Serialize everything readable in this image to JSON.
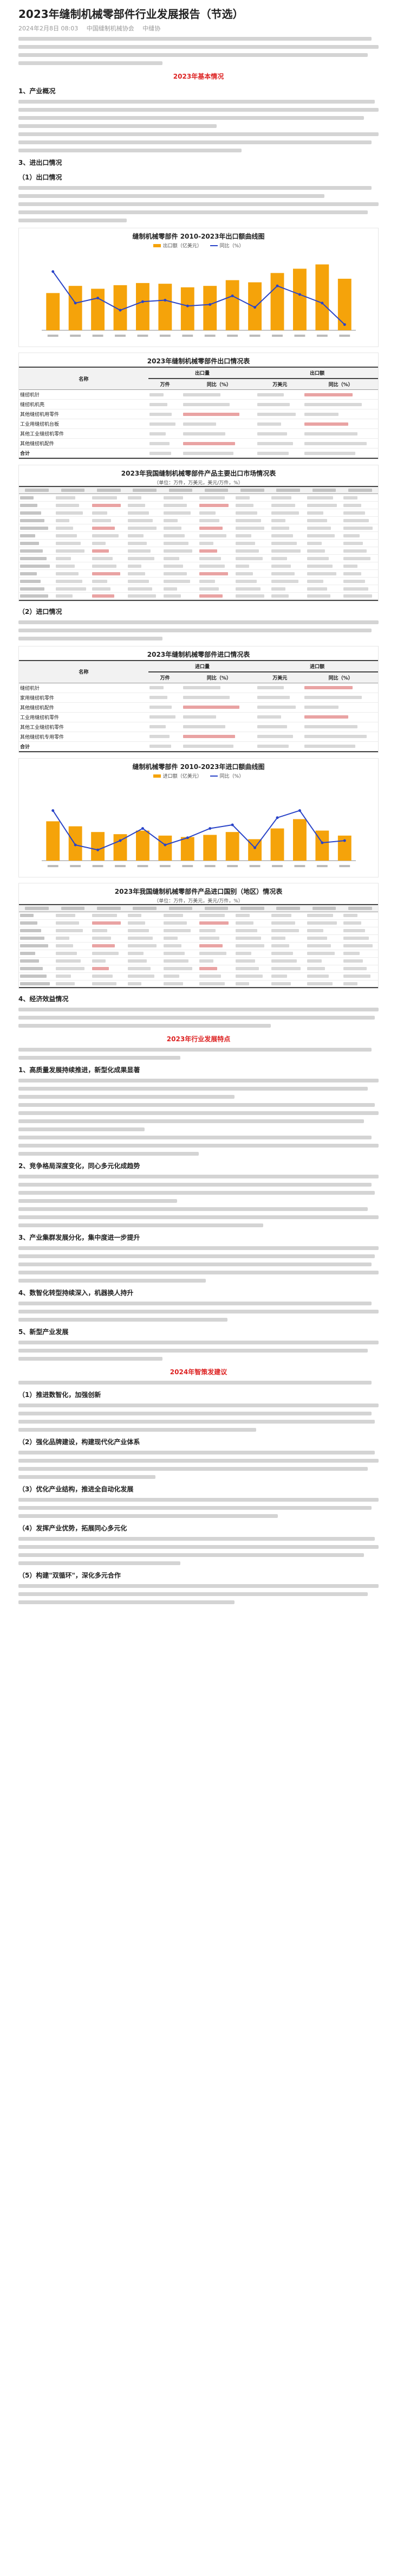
{
  "article": {
    "title": "2023年缝制机械零部件行业发展报告（节选）",
    "date": "2024年2月8日 08:03",
    "source": "中国缝制机械协会",
    "author": "中缝协"
  },
  "sections": {
    "part1": "2023年基本情况",
    "overview": "1、产业概况",
    "s3": "3、进出口情况",
    "s3_1": "（1）出口情况",
    "s3_2": "（2）进口情况",
    "s4": "4、经济效益情况",
    "part2": "2023年行业发展特点",
    "p1": "1、高质量发展持续推进，新型化成果显著",
    "p2": "2、竞争格局深度变化，同心多元化成趋势",
    "p3": "3、产业集群发展分化，集中度进一步提升",
    "p4": "4、数智化转型持续深入，机器换人持升",
    "p5": "5、新型产业发展",
    "part3": "2024年智策发建议",
    "r1": "（1）推进数智化，加强创新",
    "r2": "（2）强化品牌建设，构建现代化产业体系",
    "r3": "（3）优化产业结构，推进全自动化发展",
    "r4": "（4）发挥产业优势，拓展同心多元化",
    "r5": "（5）构建\"双循环\"，深化多元合作"
  },
  "chart1": {
    "title": "缝制机械零部件 2010-2023年出口额曲线图",
    "legend_bar": "出口额（亿美元）",
    "legend_line": "同比（%）"
  },
  "table1": {
    "title": "2023年缝制机械零部件出口情况表",
    "col_item": "名称",
    "col_qty": "出口量",
    "col_value": "出口额",
    "sub_unit": "万件",
    "sub_yoy": "同比（%）",
    "sub_usd": "万美元",
    "rows": [
      {
        "name": "缝纫机针"
      },
      {
        "name": "缝纫机机壳"
      },
      {
        "name": "其他缝纫机用零件"
      },
      {
        "name": "工业用缝纫机台板"
      },
      {
        "name": "其他工业缝纫机零件"
      },
      {
        "name": "其他缝纫机配件"
      }
    ],
    "total_label": "合计"
  },
  "table2": {
    "title": "2023年我国缝制机械零部件产品主要出口市场情况表",
    "unit_note": "（单位：万件，万美元，美元/万件，%）"
  },
  "table3": {
    "title": "2023年缝制机械零部件进口情况表",
    "col_item": "名称",
    "col_qty": "进口量",
    "col_value": "进口额",
    "sub_unit": "万件",
    "sub_yoy": "同比（%）",
    "sub_usd": "万美元",
    "rows": [
      {
        "name": "缝纫机针"
      },
      {
        "name": "家用缝纫机零件"
      },
      {
        "name": "其他缝纫机配件"
      },
      {
        "name": "工业用缝纫机零件"
      },
      {
        "name": "其他工业缝纫机零件"
      },
      {
        "name": "其他缝纫机专用零件"
      }
    ],
    "total_label": "合计"
  },
  "chart2": {
    "title": "缝制机械零部件 2010-2023年进口额曲线图",
    "legend_bar": "进口额（亿美元）",
    "legend_line": "同比（%）"
  },
  "table4": {
    "title": "2023年我国缝制机械零部件产品进口国别（地区）情况表",
    "unit_note": "（单位：万件，万美元，美元/万件，%）"
  }
}
